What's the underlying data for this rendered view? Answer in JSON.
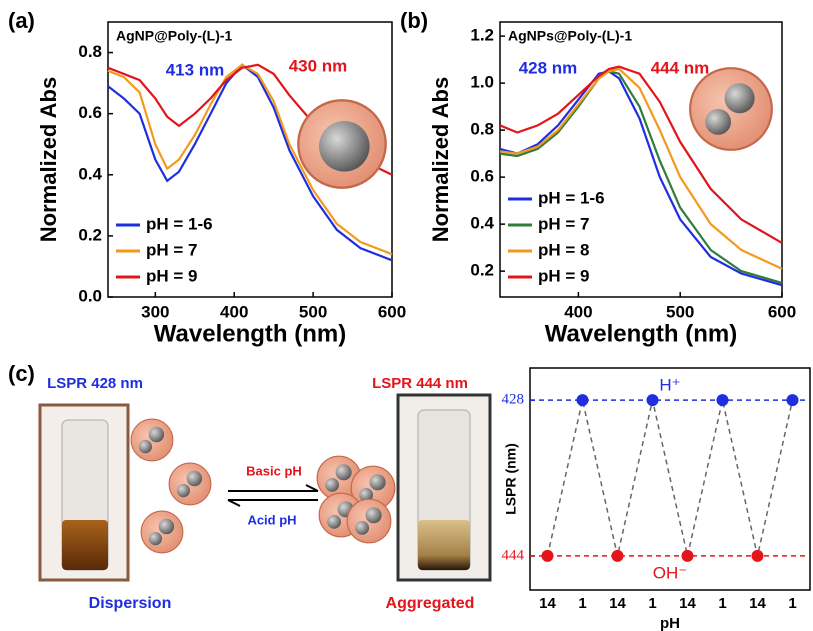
{
  "chart_data": [
    {
      "type": "line",
      "panel_label": "(a)",
      "xlabel": "Wavelength (nm)",
      "ylabel": "Normalized Abs",
      "xlim": [
        240,
        600
      ],
      "xticks": [
        300,
        400,
        500,
        600
      ],
      "ylim": [
        0,
        0.9
      ],
      "yticks": [
        {
          "value": 0,
          "label": "0.0"
        },
        0.2,
        0.4,
        0.6,
        0.8
      ],
      "legend": "lower left",
      "annotations": [
        {
          "text": "AgNP@Poly-(L)-1",
          "color": "#000000"
        },
        {
          "text": "413 nm",
          "color": "#1f2ee0"
        },
        {
          "text": "430 nm",
          "color": "#e3141b"
        }
      ],
      "x": [
        240,
        260,
        280,
        300,
        315,
        330,
        350,
        370,
        390,
        410,
        430,
        450,
        470,
        500,
        530,
        560,
        600
      ],
      "series": [
        {
          "name": "pH = 1-6",
          "color": "#1f2ee0",
          "values": [
            0.69,
            0.65,
            0.6,
            0.45,
            0.38,
            0.41,
            0.5,
            0.6,
            0.7,
            0.76,
            0.72,
            0.62,
            0.48,
            0.33,
            0.22,
            0.16,
            0.12
          ]
        },
        {
          "name": "pH = 7",
          "color": "#f29a1c",
          "values": [
            0.74,
            0.72,
            0.67,
            0.5,
            0.42,
            0.45,
            0.53,
            0.63,
            0.72,
            0.76,
            0.73,
            0.64,
            0.5,
            0.35,
            0.24,
            0.18,
            0.14
          ]
        },
        {
          "name": "pH = 9",
          "color": "#e3141b",
          "values": [
            0.75,
            0.73,
            0.71,
            0.65,
            0.59,
            0.56,
            0.6,
            0.65,
            0.71,
            0.75,
            0.76,
            0.73,
            0.66,
            0.57,
            0.5,
            0.45,
            0.4
          ]
        }
      ]
    },
    {
      "type": "line",
      "panel_label": "(b)",
      "xlabel": "Wavelength (nm)",
      "ylabel": "Normalized Abs",
      "xlim": [
        323,
        600
      ],
      "xticks": [
        400,
        500,
        600
      ],
      "ylim": [
        0.09,
        1.26
      ],
      "yticks": [
        0.2,
        0.4,
        0.6,
        0.8,
        {
          "value": 1,
          "label": "1.0"
        },
        1.2
      ],
      "legend": "lower left",
      "annotations": [
        {
          "text": "AgNPs@Poly-(L)-1",
          "color": "#000000"
        },
        {
          "text": "428 nm",
          "color": "#1f2ee0"
        },
        {
          "text": "444 nm",
          "color": "#e3141b"
        }
      ],
      "x": [
        323,
        340,
        360,
        380,
        400,
        420,
        430,
        440,
        460,
        480,
        500,
        530,
        560,
        600
      ],
      "series": [
        {
          "name": "pH = 1-6",
          "color": "#1f2ee0",
          "values": [
            0.72,
            0.7,
            0.74,
            0.82,
            0.93,
            1.04,
            1.05,
            1.02,
            0.85,
            0.6,
            0.42,
            0.26,
            0.19,
            0.14
          ]
        },
        {
          "name": "pH = 7",
          "color": "#2e7d3a",
          "values": [
            0.7,
            0.69,
            0.72,
            0.79,
            0.9,
            1.02,
            1.05,
            1.04,
            0.9,
            0.67,
            0.47,
            0.29,
            0.2,
            0.15
          ]
        },
        {
          "name": "pH = 8",
          "color": "#f29a1c",
          "values": [
            0.71,
            0.7,
            0.73,
            0.8,
            0.91,
            1.02,
            1.05,
            1.06,
            0.98,
            0.8,
            0.6,
            0.4,
            0.29,
            0.21
          ]
        },
        {
          "name": "pH = 9",
          "color": "#e3141b",
          "values": [
            0.82,
            0.79,
            0.82,
            0.87,
            0.95,
            1.03,
            1.06,
            1.07,
            1.04,
            0.92,
            0.75,
            0.55,
            0.42,
            0.32
          ]
        }
      ]
    },
    {
      "type": "dotline",
      "xlabel": "pH",
      "ylabel": "LSPR (nm)",
      "categories": [
        "14",
        "1",
        "14",
        "1",
        "14",
        "1",
        "14",
        "1"
      ],
      "values": [
        444,
        428,
        444,
        428,
        444,
        428,
        444,
        428
      ],
      "point_colors": [
        "#e3141b",
        "#1f2ee0",
        "#e3141b",
        "#1f2ee0",
        "#e3141b",
        "#1f2ee0",
        "#e3141b",
        "#1f2ee0"
      ],
      "line_color": "#666666",
      "ylim": [
        447.5,
        424.7
      ],
      "yticks": [
        428,
        444
      ],
      "reference_lines": [
        {
          "value": 428,
          "color": "#1f2ee0",
          "label": "H⁺"
        },
        {
          "value": 444,
          "color": "#e3141b",
          "label": "OH⁻"
        }
      ]
    }
  ],
  "scheme": {
    "panel_label": "(c)",
    "left_title": "LSPR 428 nm",
    "right_title": "LSPR 444 nm",
    "forward": "Basic pH",
    "backward": "Acid pH",
    "left_caption": "Dispersion",
    "right_caption": "Aggregated"
  }
}
